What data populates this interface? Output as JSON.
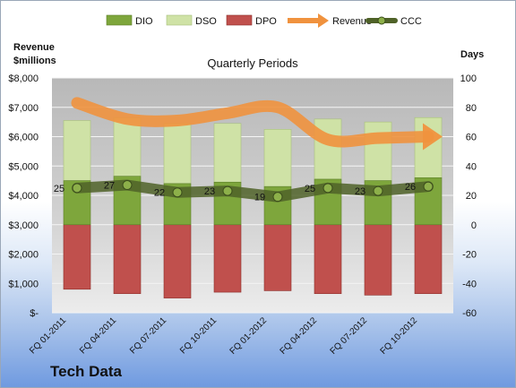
{
  "chart_data": {
    "type": "bar",
    "title": "Quarterly Periods",
    "left_axis_label": [
      "Revenue",
      "$millions"
    ],
    "right_axis_label": "Days",
    "categories": [
      "FQ 01-2011",
      "FQ 04-2011",
      "FQ 07-2011",
      "FQ 10-2011",
      "FQ 01-2012",
      "FQ 04-2012",
      "FQ 07-2012",
      "FQ 10-2012"
    ],
    "left_ticks": [
      "$-",
      "$1,000",
      "$2,000",
      "$3,000",
      "$4,000",
      "$5,000",
      "$6,000",
      "$7,000",
      "$8,000"
    ],
    "left_ylim": [
      0,
      8000
    ],
    "right_ticks": [
      "-60",
      "-40",
      "-20",
      "0",
      "20",
      "40",
      "60",
      "80",
      "100"
    ],
    "right_ylim": [
      -60,
      100
    ],
    "legend_position": "top",
    "legend": [
      "DIO",
      "DSO",
      "DPO",
      "Revenue",
      "CCC"
    ],
    "series": [
      {
        "name": "DIO",
        "axis": "right",
        "color": "#7ea63c",
        "values": [
          30,
          33,
          28,
          29,
          26,
          31,
          30,
          32
        ]
      },
      {
        "name": "DSO",
        "axis": "right",
        "color": "#cfe2a6",
        "values": [
          41,
          40,
          41,
          40,
          39,
          41,
          40,
          41
        ]
      },
      {
        "name": "DPO",
        "axis": "right",
        "color": "#c0504d",
        "values": [
          -44,
          -47,
          -50,
          -46,
          -45,
          -47,
          -48,
          -47
        ]
      },
      {
        "name": "Revenue",
        "axis": "left",
        "color": "#f0923e",
        "values": [
          7150,
          6600,
          6550,
          6800,
          7000,
          5900,
          5950,
          6000
        ]
      },
      {
        "name": "CCC",
        "axis": "right",
        "color": "#4f6228",
        "values": [
          25,
          27,
          22,
          23,
          19,
          25,
          23,
          26
        ],
        "labels": [
          "25",
          "27",
          "22",
          "23",
          "19",
          "25",
          "23",
          "26"
        ]
      }
    ]
  },
  "footer": {
    "company": "Tech Data"
  }
}
